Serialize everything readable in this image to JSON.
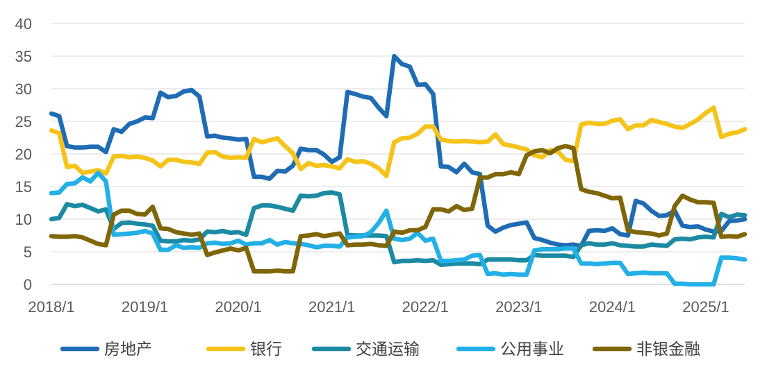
{
  "chart_data": {
    "type": "line",
    "title": "",
    "xlabel": "",
    "ylabel": "",
    "ylim": [
      0,
      40
    ],
    "yticks": [
      0,
      5,
      10,
      15,
      20,
      25,
      30,
      35,
      40
    ],
    "xlim": [
      "2018-01",
      "2025-06"
    ],
    "x_tick_labels": [
      "2018/1",
      "2019/1",
      "2020/1",
      "2021/1",
      "2022/1",
      "2023/1",
      "2024/1",
      "2025/1"
    ],
    "grid": true,
    "legend_position": "bottom",
    "x": [
      "2018-01",
      "2018-02",
      "2018-03",
      "2018-04",
      "2018-05",
      "2018-06",
      "2018-07",
      "2018-08",
      "2018-09",
      "2018-10",
      "2018-11",
      "2018-12",
      "2019-01",
      "2019-02",
      "2019-03",
      "2019-04",
      "2019-05",
      "2019-06",
      "2019-07",
      "2019-08",
      "2019-09",
      "2019-10",
      "2019-11",
      "2019-12",
      "2020-01",
      "2020-02",
      "2020-03",
      "2020-04",
      "2020-05",
      "2020-06",
      "2020-07",
      "2020-08",
      "2020-09",
      "2020-10",
      "2020-11",
      "2020-12",
      "2021-01",
      "2021-02",
      "2021-03",
      "2021-04",
      "2021-05",
      "2021-06",
      "2021-07",
      "2021-08",
      "2021-09",
      "2021-10",
      "2021-11",
      "2021-12",
      "2022-01",
      "2022-02",
      "2022-03",
      "2022-04",
      "2022-05",
      "2022-06",
      "2022-07",
      "2022-08",
      "2022-09",
      "2022-10",
      "2022-11",
      "2022-12",
      "2023-01",
      "2023-02",
      "2023-03",
      "2023-04",
      "2023-05",
      "2023-06",
      "2023-07",
      "2023-08",
      "2023-09",
      "2023-10",
      "2023-11",
      "2023-12",
      "2024-01",
      "2024-02",
      "2024-03",
      "2024-04",
      "2024-05",
      "2024-06",
      "2024-07",
      "2024-08",
      "2024-09",
      "2024-10",
      "2024-11",
      "2024-12",
      "2025-01",
      "2025-02",
      "2025-03",
      "2025-04",
      "2025-05",
      "2025-06"
    ],
    "series": [
      {
        "name": "房地产",
        "color": "#1f6cb4",
        "values": [
          26.2,
          25.8,
          21.2,
          21.0,
          21.0,
          21.1,
          21.1,
          20.3,
          23.8,
          23.4,
          24.6,
          25.0,
          25.6,
          25.5,
          29.4,
          28.7,
          28.9,
          29.6,
          29.8,
          28.8,
          22.7,
          22.8,
          22.5,
          22.4,
          22.2,
          22.3,
          16.5,
          16.5,
          16.2,
          17.4,
          17.3,
          18.2,
          20.8,
          20.6,
          20.6,
          19.9,
          18.8,
          19.5,
          29.5,
          29.2,
          28.8,
          28.6,
          27.1,
          25.8,
          35.0,
          33.8,
          33.4,
          30.6,
          30.7,
          29.2,
          18.1,
          18.0,
          17.2,
          18.5,
          17.2,
          16.9,
          9.0,
          8.1,
          8.7,
          9.1,
          9.3,
          9.5,
          7.1,
          6.8,
          6.4,
          6.1,
          6.0,
          6.1,
          5.9,
          8.2,
          8.3,
          8.2,
          8.6,
          7.7,
          7.5,
          12.8,
          12.4,
          11.3,
          10.5,
          10.6,
          11.3,
          9.0,
          8.8,
          8.9,
          8.4,
          8.1,
          8.2,
          9.7,
          9.8,
          10.0
        ]
      },
      {
        "name": "银行",
        "color": "#f5c31a",
        "values": [
          23.6,
          23.2,
          18.0,
          18.2,
          17.1,
          17.3,
          17.5,
          17.0,
          19.6,
          19.7,
          19.5,
          19.6,
          19.4,
          19.0,
          18.1,
          19.1,
          19.1,
          18.8,
          18.7,
          18.5,
          20.2,
          20.3,
          19.6,
          19.4,
          19.5,
          19.4,
          22.3,
          21.8,
          22.1,
          22.4,
          21.2,
          20.1,
          17.7,
          18.6,
          18.2,
          18.3,
          18.1,
          17.8,
          19.2,
          18.8,
          18.9,
          18.5,
          17.8,
          16.6,
          21.8,
          22.4,
          22.5,
          23.1,
          24.2,
          24.2,
          22.2,
          22.0,
          21.9,
          22.0,
          21.9,
          21.8,
          21.9,
          23.0,
          21.5,
          21.3,
          21.0,
          20.7,
          19.8,
          19.5,
          20.6,
          20.4,
          19.1,
          18.9,
          24.5,
          24.8,
          24.6,
          24.6,
          25.1,
          25.3,
          23.8,
          24.4,
          24.4,
          25.2,
          24.9,
          24.6,
          24.2,
          24.0,
          24.6,
          25.3,
          26.3,
          27.1,
          22.6,
          23.1,
          23.3,
          23.8
        ]
      },
      {
        "name": "交通运输",
        "color": "#1b8aa2",
        "values": [
          10.0,
          10.2,
          12.3,
          12.0,
          12.2,
          11.7,
          11.2,
          11.5,
          8.5,
          9.4,
          9.5,
          9.3,
          9.2,
          9.0,
          6.7,
          6.6,
          6.6,
          6.8,
          6.7,
          6.9,
          8.1,
          8.0,
          8.2,
          7.9,
          8.0,
          7.6,
          11.7,
          12.1,
          12.1,
          11.9,
          11.6,
          11.3,
          13.6,
          13.5,
          13.6,
          14.0,
          14.1,
          13.8,
          7.6,
          7.5,
          7.5,
          7.5,
          7.5,
          7.4,
          3.4,
          3.6,
          3.6,
          3.7,
          3.6,
          3.7,
          3.0,
          3.1,
          3.2,
          3.2,
          3.2,
          3.1,
          3.8,
          3.8,
          3.8,
          3.8,
          3.7,
          3.7,
          4.5,
          4.4,
          4.4,
          4.4,
          4.4,
          4.2,
          6.0,
          6.3,
          6.1,
          6.1,
          6.3,
          6.0,
          5.9,
          5.8,
          5.8,
          6.1,
          6.0,
          5.9,
          6.9,
          7.0,
          6.9,
          7.2,
          7.3,
          7.2,
          10.8,
          10.3,
          10.7,
          10.6
        ]
      },
      {
        "name": "公用事业",
        "color": "#22b0e6",
        "values": [
          14.0,
          14.1,
          15.4,
          15.5,
          16.4,
          15.8,
          17.1,
          15.8,
          7.6,
          7.7,
          7.8,
          7.9,
          8.2,
          7.8,
          5.3,
          5.3,
          6.0,
          5.6,
          5.7,
          5.6,
          6.3,
          6.4,
          6.2,
          6.3,
          6.7,
          6.1,
          6.3,
          6.3,
          6.8,
          6.1,
          6.5,
          6.3,
          6.2,
          6.0,
          5.7,
          5.9,
          5.9,
          5.8,
          7.2,
          7.3,
          7.4,
          8.0,
          9.4,
          11.3,
          7.0,
          6.8,
          7.0,
          7.9,
          6.7,
          7.0,
          3.6,
          3.6,
          3.7,
          3.8,
          4.4,
          4.5,
          1.6,
          1.7,
          1.5,
          1.6,
          1.5,
          1.5,
          5.2,
          5.4,
          5.4,
          5.4,
          5.5,
          5.5,
          3.2,
          3.2,
          3.1,
          3.2,
          3.3,
          3.3,
          1.6,
          1.7,
          1.8,
          1.7,
          1.7,
          1.7,
          0.1,
          0.1,
          0.0,
          0.0,
          0.0,
          0.0,
          4.1,
          4.1,
          4.0,
          3.8
        ]
      },
      {
        "name": "非银金融",
        "color": "#7f6608",
        "values": [
          7.4,
          7.3,
          7.3,
          7.4,
          7.2,
          6.7,
          6.2,
          6.0,
          10.7,
          11.3,
          11.3,
          10.8,
          10.7,
          11.9,
          8.6,
          8.5,
          8.0,
          7.8,
          7.6,
          7.8,
          4.5,
          4.9,
          5.2,
          5.5,
          5.2,
          5.6,
          2.0,
          2.0,
          2.0,
          2.1,
          2.0,
          2.0,
          7.4,
          7.5,
          7.7,
          7.4,
          7.6,
          7.8,
          6.0,
          6.1,
          6.1,
          6.2,
          6.0,
          5.9,
          8.1,
          7.9,
          8.3,
          8.3,
          8.8,
          11.5,
          11.5,
          11.2,
          12.0,
          11.4,
          11.6,
          16.4,
          16.4,
          16.9,
          16.9,
          17.2,
          16.9,
          19.8,
          20.4,
          20.6,
          20.1,
          20.9,
          21.2,
          20.9,
          14.6,
          14.2,
          14.0,
          13.6,
          13.2,
          13.3,
          8.3,
          8.0,
          7.9,
          7.8,
          7.5,
          7.8,
          12.0,
          13.6,
          13.0,
          12.6,
          12.6,
          12.5,
          7.3,
          7.4,
          7.3,
          7.7
        ]
      }
    ]
  }
}
